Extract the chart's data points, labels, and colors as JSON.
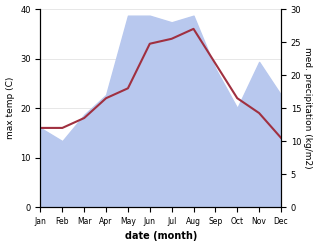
{
  "months": [
    "Jan",
    "Feb",
    "Mar",
    "Apr",
    "May",
    "Jun",
    "Jul",
    "Aug",
    "Sep",
    "Oct",
    "Nov",
    "Dec"
  ],
  "temp": [
    16,
    16,
    18,
    22,
    24,
    33,
    34,
    36,
    29,
    22,
    19,
    14
  ],
  "precip": [
    12,
    10,
    14,
    17,
    29,
    29,
    28,
    29,
    21,
    15,
    22,
    17
  ],
  "temp_color": "#a03040",
  "precip_color_fill": "#b8c8ee",
  "ylim_left": [
    0,
    40
  ],
  "ylim_right": [
    0,
    30
  ],
  "xlabel": "date (month)",
  "ylabel_left": "max temp (C)",
  "ylabel_right": "med. precipitation (kg/m2)"
}
